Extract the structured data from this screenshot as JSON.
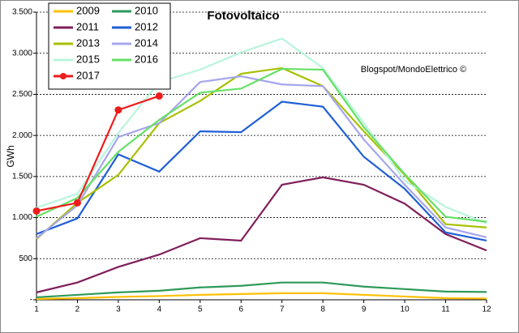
{
  "chart_data": {
    "type": "line",
    "title": "Fotovoltaico",
    "ylabel": "GWh",
    "annotation": "Blogspot/MondoElettrico ©",
    "x": [
      1,
      2,
      3,
      4,
      5,
      6,
      7,
      8,
      9,
      10,
      11,
      12
    ],
    "xlim": [
      1,
      12
    ],
    "xticks": [
      1,
      2,
      3,
      4,
      5,
      6,
      7,
      8,
      9,
      10,
      11,
      12
    ],
    "ylim": [
      0,
      3500
    ],
    "yticks": [
      {
        "value": 0,
        "label": "-"
      },
      500,
      {
        "value": 1000,
        "label": "1.000"
      },
      {
        "value": 1500,
        "label": "1.500"
      },
      {
        "value": 2000,
        "label": "2.000"
      },
      {
        "value": 2500,
        "label": "2.500"
      },
      {
        "value": 3000,
        "label": "3.000"
      },
      {
        "value": 3500,
        "label": "3.500"
      }
    ],
    "grid": true,
    "legend": "upper left",
    "series": [
      {
        "name": "2009",
        "color": "#ffc000",
        "values": [
          10,
          20,
          35,
          45,
          60,
          70,
          80,
          80,
          60,
          40,
          20,
          15
        ]
      },
      {
        "name": "2010",
        "color": "#2e9a5a",
        "values": [
          30,
          60,
          90,
          110,
          150,
          170,
          210,
          210,
          160,
          130,
          100,
          95
        ]
      },
      {
        "name": "2011",
        "color": "#7f1f5a",
        "values": [
          90,
          210,
          400,
          550,
          750,
          720,
          1400,
          1490,
          1400,
          1170,
          800,
          600
        ]
      },
      {
        "name": "2012",
        "color": "#1f5fd6",
        "values": [
          800,
          990,
          1770,
          1560,
          2050,
          2040,
          2410,
          2350,
          1740,
          1350,
          820,
          720
        ]
      },
      {
        "name": "2013",
        "color": "#a8c000",
        "values": [
          740,
          1180,
          1520,
          2150,
          2420,
          2750,
          2820,
          2600,
          2050,
          1520,
          920,
          880
        ]
      },
      {
        "name": "2014",
        "color": "#a6a6ee",
        "values": [
          750,
          1150,
          1980,
          2150,
          2650,
          2720,
          2620,
          2600,
          1950,
          1400,
          880,
          760
        ]
      },
      {
        "name": "2015",
        "color": "#b8f5dc",
        "values": [
          1120,
          1290,
          2030,
          2650,
          2800,
          3010,
          3180,
          2820,
          2150,
          1450,
          1130,
          930
        ]
      },
      {
        "name": "2016",
        "color": "#66e066",
        "values": [
          1010,
          1240,
          1800,
          2190,
          2520,
          2570,
          2810,
          2800,
          2100,
          1530,
          1010,
          950
        ]
      },
      {
        "name": "2017",
        "color": "#ee1c1c",
        "values": [
          1080,
          1180,
          2310,
          2480,
          null,
          null,
          null,
          null,
          null,
          null,
          null,
          null
        ]
      }
    ]
  }
}
